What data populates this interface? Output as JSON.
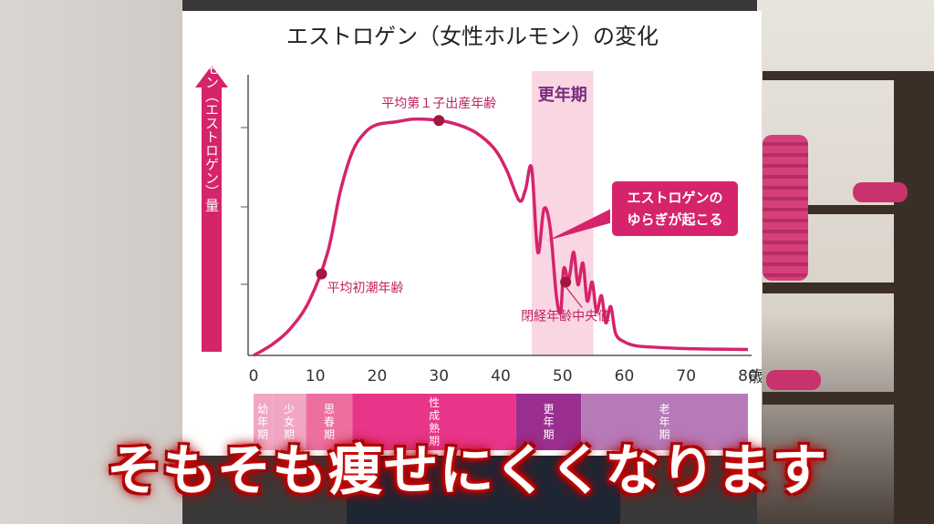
{
  "title": "エストロゲン（女性ホルモン）の変化",
  "chart_data": {
    "type": "line",
    "title": "エストロゲン（女性ホルモン）の変化",
    "ylabel": "女性ホルモン（エストロゲン）量",
    "xlabel": "歳",
    "xlim": [
      0,
      80
    ],
    "ylim": [
      0,
      100
    ],
    "x_ticks": [
      0,
      10,
      20,
      30,
      40,
      50,
      60,
      70,
      80
    ],
    "x": [
      0,
      3,
      6,
      9,
      12,
      14,
      16,
      18,
      20,
      23,
      26,
      30,
      33,
      36,
      39,
      41,
      43,
      44,
      45,
      46,
      47,
      48,
      49,
      49.7,
      50.2,
      51,
      51.8,
      52.5,
      53.3,
      54,
      54.8,
      55.5,
      56.3,
      57,
      57.8,
      58.6,
      60,
      62,
      65,
      70,
      75,
      80
    ],
    "y": [
      0,
      4,
      10,
      20,
      38,
      60,
      75,
      82,
      85,
      86,
      87,
      86.5,
      85,
      82,
      76,
      68,
      57,
      61,
      69,
      38,
      54,
      47,
      22,
      16,
      32,
      28,
      38,
      26,
      34,
      20,
      27,
      16,
      22,
      12,
      18,
      8,
      5,
      3.5,
      3,
      2.5,
      2.3,
      2.2
    ],
    "markers": [
      {
        "x": 11,
        "y": 30,
        "label": "平均初潮年齢"
      },
      {
        "x": 30,
        "y": 86.5,
        "label": "平均第１子出産年齢"
      },
      {
        "x": 50.5,
        "y": 27,
        "label": "閉経年齢中央値"
      }
    ],
    "highlight_band": {
      "from": 45,
      "to": 55,
      "label": "更年期"
    },
    "callout": "エストロゲンの\nゆらぎが起こる",
    "life_stages": [
      {
        "label": "幼年期",
        "from": 0,
        "to": 3,
        "color": "#f1a7c3"
      },
      {
        "label": "少女期",
        "from": 3,
        "to": 8.5,
        "color": "#f1a7c3"
      },
      {
        "label": "思春期",
        "from": 8.5,
        "to": 16,
        "color": "#ec6fa0"
      },
      {
        "label": "性成熟期",
        "from": 16,
        "to": 42.5,
        "color": "#e8358a"
      },
      {
        "label": "更年期",
        "from": 42.5,
        "to": 53,
        "color": "#9a2f8f"
      },
      {
        "label": "老年期",
        "from": 53,
        "to": 80,
        "color": "#b77ab8"
      }
    ],
    "grid": false,
    "series_color": "#d5246b"
  },
  "caption": "そもそも痩せにくくなります"
}
